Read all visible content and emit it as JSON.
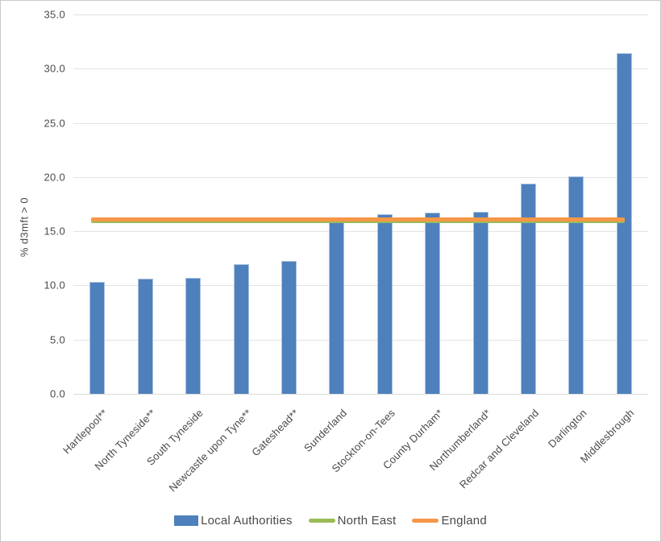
{
  "chart_data": {
    "type": "bar",
    "title": "",
    "xlabel": "",
    "ylabel": "% d3mft > 0",
    "ylim": [
      0,
      35
    ],
    "ytick_step": 5,
    "ytick_decimals": 1,
    "grid": true,
    "legend_position": "bottom",
    "categories": [
      "Hartlepool**",
      "North Tyneside**",
      "South Tyneside",
      "Newcastle upon Tyne**",
      "Gateshead**",
      "Sunderland",
      "Stockton-on-Tees",
      "County Durham*",
      "Northumberland*",
      "Redcar and Cleveland",
      "Darlington",
      "Middlesbrough"
    ],
    "series": [
      {
        "name": "Local Authorities",
        "type": "bar",
        "color": "#4e80bc",
        "values": [
          10.3,
          10.6,
          10.7,
          12.0,
          12.3,
          15.8,
          16.6,
          16.7,
          16.8,
          19.4,
          20.1,
          31.4
        ]
      },
      {
        "name": "North East",
        "type": "line",
        "color": "#9bbb59",
        "value": 15.9
      },
      {
        "name": "England",
        "type": "line",
        "color": "#f79646",
        "value": 16.1
      }
    ]
  },
  "colors": {
    "bar_fill": "#4e80bc",
    "bar_border": "#a9c3e0",
    "north_east_line": "#9bbb59",
    "england_line": "#f79646",
    "gridline": "#e3e3e3",
    "text": "#4a4a4a"
  }
}
